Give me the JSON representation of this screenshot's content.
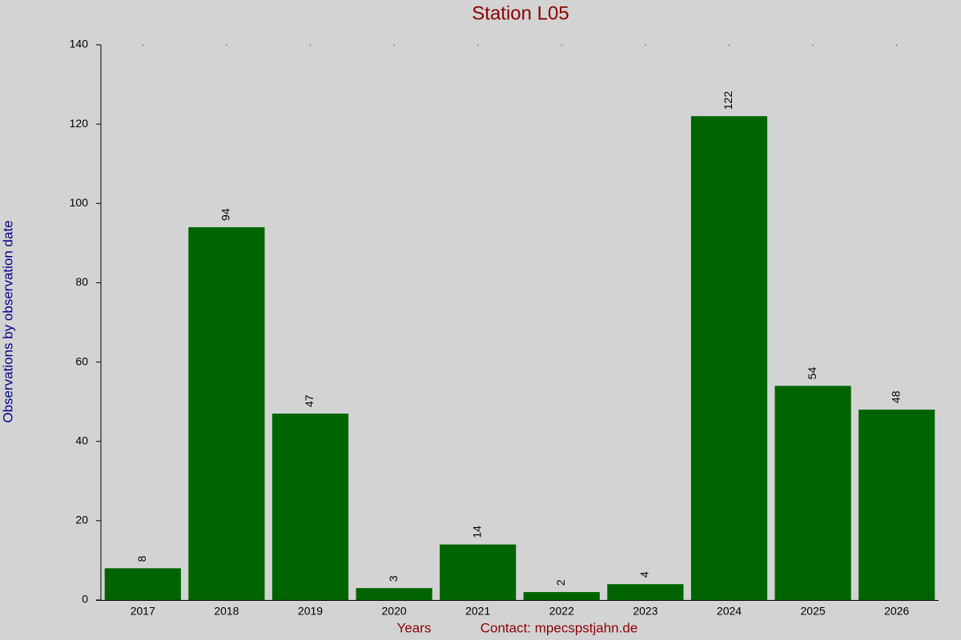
{
  "chart_data": {
    "type": "bar",
    "title": "Station L05",
    "x_label": "Years",
    "contact": "Contact: mpecspstjahn.de",
    "y_label": "Observations by observation date",
    "categories": [
      "2017",
      "2018",
      "2019",
      "2020",
      "2021",
      "2022",
      "2023",
      "2024",
      "2025",
      "2026"
    ],
    "values": [
      8,
      94,
      47,
      3,
      14,
      2,
      4,
      122,
      54,
      48
    ],
    "color": "#006400",
    "ylim": [
      0,
      140
    ],
    "yticks": [
      0,
      20,
      40,
      60,
      80,
      100,
      120,
      140
    ],
    "grid": false
  }
}
